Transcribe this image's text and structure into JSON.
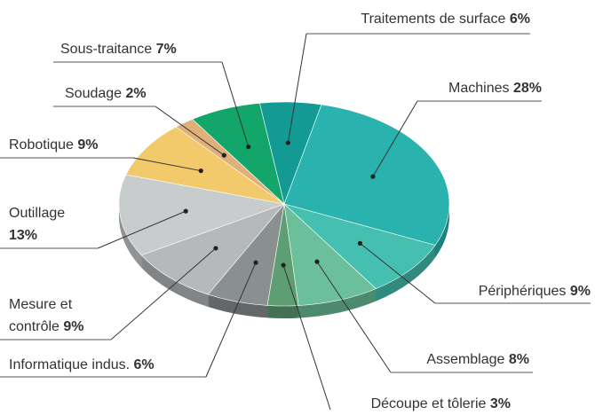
{
  "chart_data": {
    "type": "pie",
    "categories": [
      "Traitements de surface",
      "Machines",
      "Périphériques",
      "Assemblage",
      "Découpe et tôlerie",
      "Informatique indus.",
      "Mesure et contrôle",
      "Outillage",
      "Robotique",
      "Soudage",
      "Sous-traitance"
    ],
    "values": [
      6,
      28,
      9,
      8,
      3,
      6,
      9,
      13,
      9,
      2,
      7
    ],
    "value_labels": [
      "6%",
      "28%",
      "9%",
      "8%",
      "3%",
      "6%",
      "9%",
      "13%",
      "9%",
      "2%",
      "7%"
    ],
    "colors": [
      "#139a94",
      "#2ab3ae",
      "#45c0b0",
      "#6bbf9a",
      "#5d9e72",
      "#8a8f90",
      "#b5b9bb",
      "#c9cccd",
      "#f2c96b",
      "#e0b07a",
      "#12a66a"
    ]
  }
}
